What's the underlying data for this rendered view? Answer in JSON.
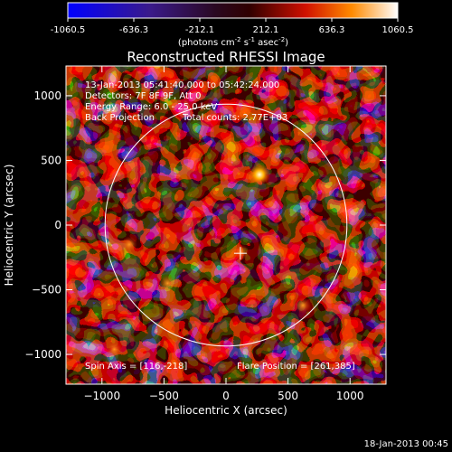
{
  "chart_data": {
    "type": "heatmap",
    "title": "Reconstructed RHESSI Image",
    "xlabel": "Heliocentric X (arcsec)",
    "ylabel": "Heliocentric Y (arcsec)",
    "xlim": [
      -1290,
      1290
    ],
    "ylim": [
      -1230,
      1230
    ],
    "xticks": [
      -1000,
      -500,
      0,
      500,
      1000
    ],
    "yticks": [
      -1000,
      -500,
      0,
      500,
      1000
    ],
    "colorbar": {
      "range": [
        -1060.5,
        1060.5
      ],
      "ticks": [
        "-1060.5",
        "-636.3",
        "-212.1",
        "212.1",
        "636.3",
        "1060.5"
      ],
      "unit_label": "(photons cm",
      "unit_exp1": "-2",
      "unit_mid": " s",
      "unit_exp2": "-1",
      "unit_mid2": " asec",
      "unit_exp3": "-2",
      "unit_close": ")"
    },
    "annotations": {
      "time_range": "13-Jan-2013 05:41:40.000 to 05:42:24.000",
      "detectors": "Detectors: 7F 8F 9F, Att 0",
      "energy_range": "Energy Range: 6.0 - 25.0 keV",
      "method": "Back Projection",
      "total_counts": "Total counts: 2.77E+03",
      "spin_axis": "Spin Axis = [116,-218]",
      "flare_position": "Flare Position = [261,385]"
    },
    "solar_disk": {
      "center": [
        0,
        0
      ],
      "radius": 975
    },
    "flare_marker": [
      116,
      -218
    ],
    "bright_source": [
      270,
      390
    ],
    "footer": "18-Jan-2013 00:45"
  }
}
